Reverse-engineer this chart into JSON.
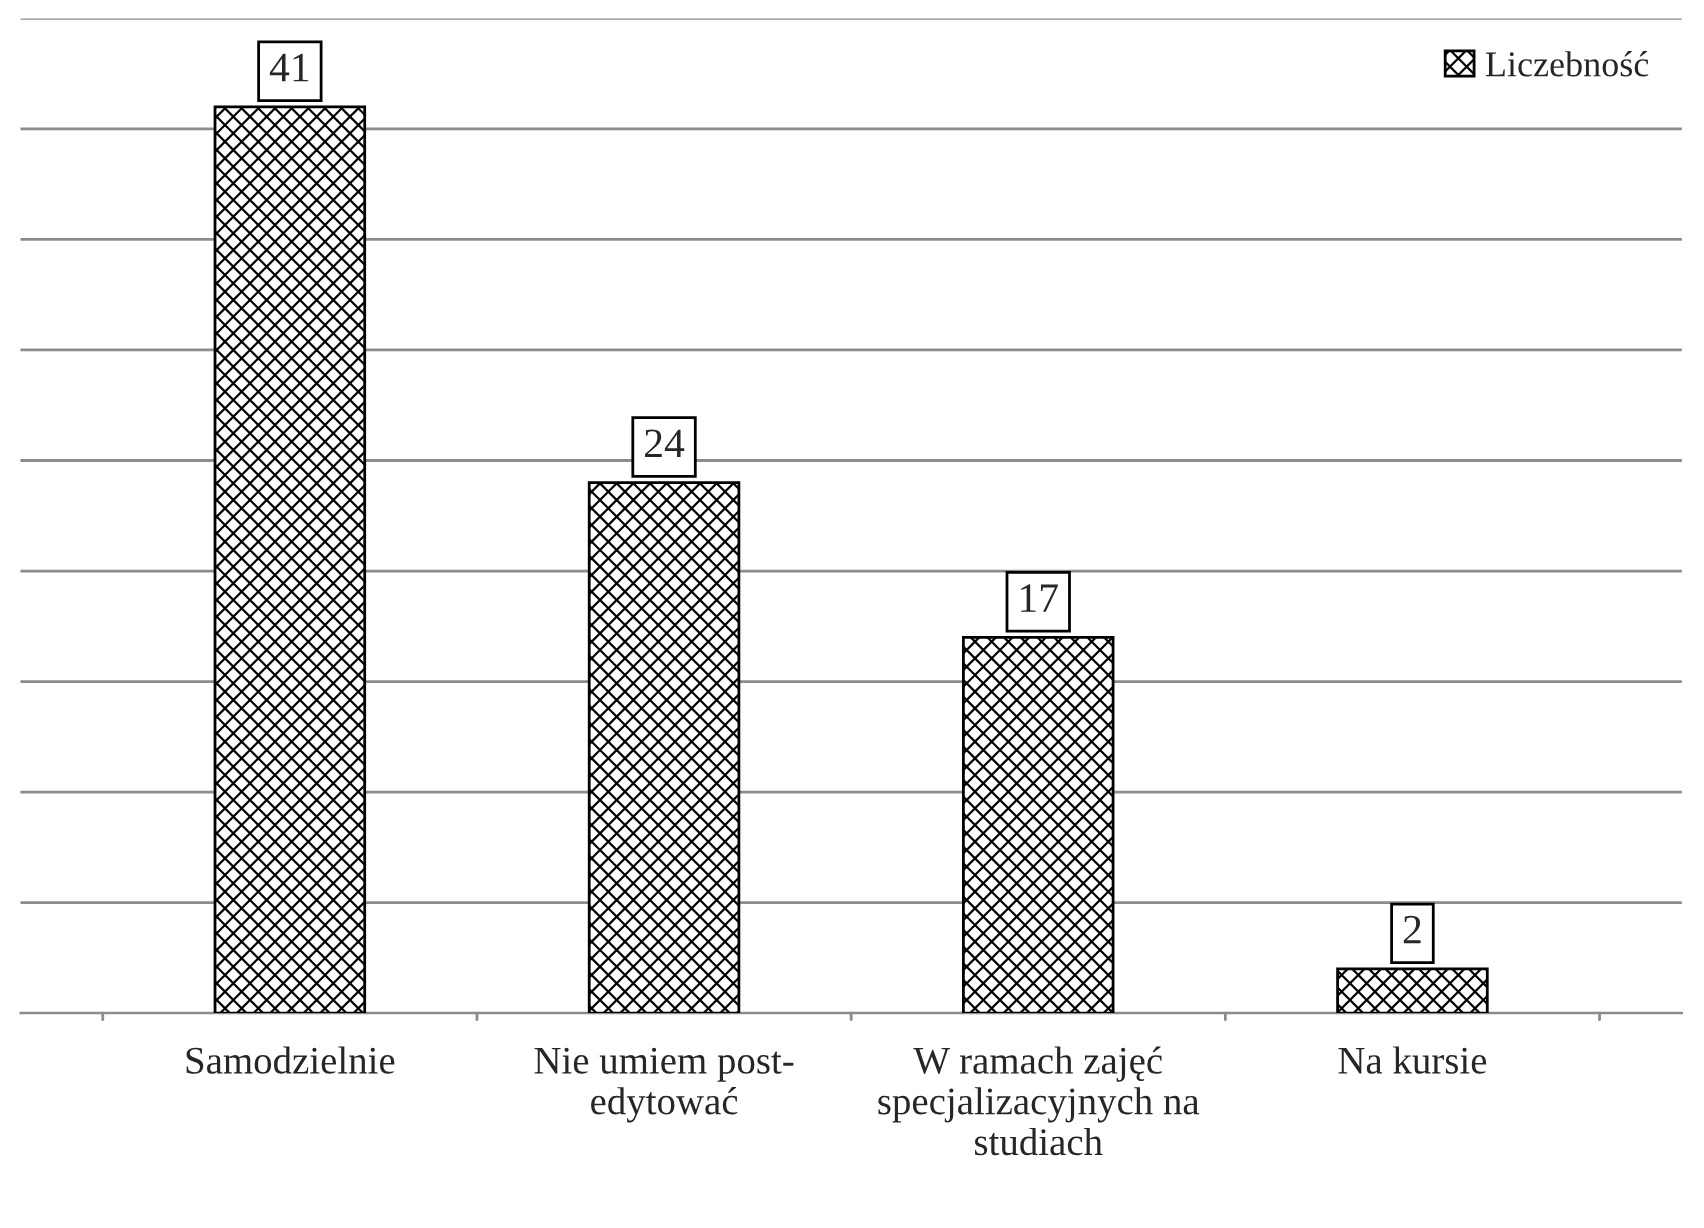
{
  "chart_data": {
    "type": "bar",
    "categories": [
      "Samodzielnie",
      "Nie umiem post-edytować",
      "W ramach zajęć specjalizacyjnych na studiach",
      "Na kursie"
    ],
    "series": [
      {
        "name": "Liczebność",
        "color": "#000000",
        "values": [
          41,
          24,
          17,
          2
        ]
      }
    ],
    "tick_labels": "x",
    "grid": "y",
    "legend": "top right",
    "data_labels": true
  }
}
